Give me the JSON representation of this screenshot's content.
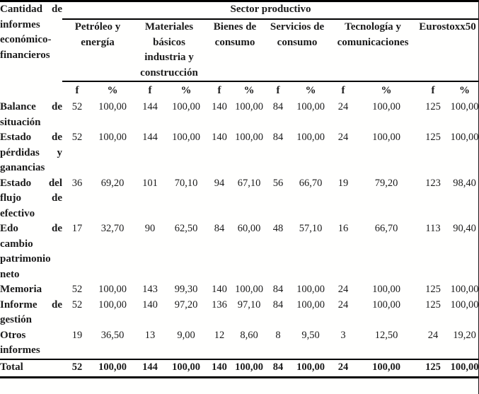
{
  "table": {
    "corner_label": "Cantidad de informes económico-financieros",
    "group_header": "Sector productivo",
    "sectors": [
      "Petróleo y energía",
      "Materiales básicos industria y construcción",
      "Bienes de consumo",
      "Servicios de consumo",
      "Tecnología y comunicaciones",
      "Eurostoxx50"
    ],
    "subheaders": [
      "f",
      "%"
    ],
    "rows": [
      {
        "label": "Balance de situación",
        "values": [
          "52",
          "100,00",
          "144",
          "100,00",
          "140",
          "100,00",
          "84",
          "100,00",
          "24",
          "100,00",
          "125",
          "100,00"
        ]
      },
      {
        "label": "Estado de pérdidas y ganancias",
        "values": [
          "52",
          "100,00",
          "144",
          "100,00",
          "140",
          "100,00",
          "84",
          "100,00",
          "24",
          "100,00",
          "125",
          "100,00"
        ]
      },
      {
        "label": "Estado del flujo de efectivo",
        "values": [
          "36",
          "69,20",
          "101",
          "70,10",
          "94",
          "67,10",
          "56",
          "66,70",
          "19",
          "79,20",
          "123",
          "98,40"
        ]
      },
      {
        "label": "Edo de cambio patrimonio neto",
        "values": [
          "17",
          "32,70",
          "90",
          "62,50",
          "84",
          "60,00",
          "48",
          "57,10",
          "16",
          "66,70",
          "113",
          "90,40"
        ]
      },
      {
        "label": "Memoria",
        "values": [
          "52",
          "100,00",
          "143",
          "99,30",
          "140",
          "100,00",
          "84",
          "100,00",
          "24",
          "100,00",
          "125",
          "100,00"
        ]
      },
      {
        "label": "Informe de gestión",
        "values": [
          "52",
          "100,00",
          "140",
          "97,20",
          "136",
          "97,10",
          "84",
          "100,00",
          "24",
          "100,00",
          "125",
          "100,00"
        ]
      },
      {
        "label": "Otros informes",
        "values": [
          "19",
          "36,50",
          "13",
          "9,00",
          "12",
          "8,60",
          "8",
          "9,50",
          "3",
          "12,50",
          "24",
          "19,20"
        ]
      },
      {
        "label": "Total",
        "total": true,
        "values": [
          "52",
          "100,00",
          "144",
          "100,00",
          "140",
          "100,00",
          "84",
          "100,00",
          "24",
          "100,00",
          "125",
          "100,00"
        ]
      }
    ],
    "colors": {
      "text": "#1b1b1b",
      "rule": "#000000",
      "background": "#ffffff"
    }
  }
}
